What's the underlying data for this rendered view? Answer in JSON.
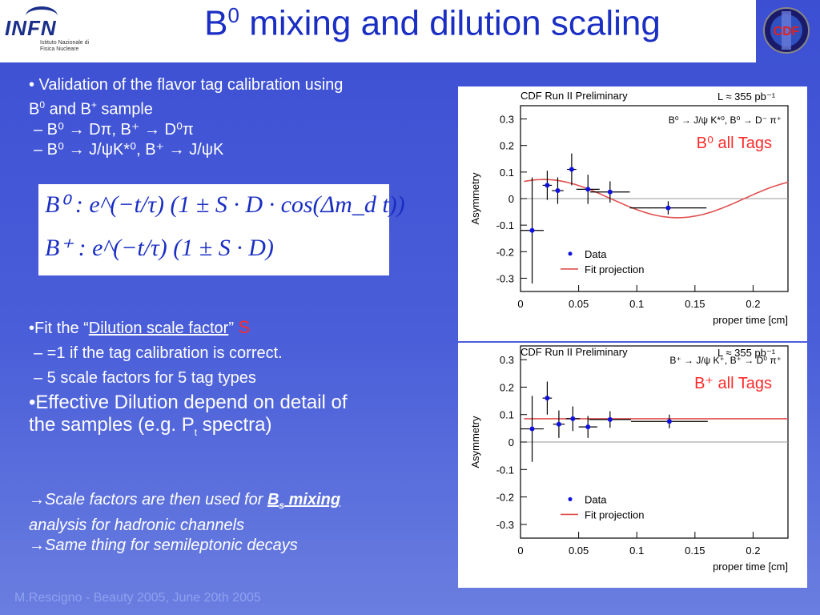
{
  "header": {
    "title_base": "B",
    "title_sup": "0",
    "title_rest": " mixing and dilution scaling",
    "infn_logo_text": "INFN",
    "infn_logo_sub": "Istituto Nazionale di Fisica Nucleare",
    "cdf_logo_text": "CDF"
  },
  "bullets1": {
    "line1a": "• Validation of the flavor tag calibration using",
    "line1b_pre": "B",
    "line1b_sup1": "0",
    "line1b_mid": " and B",
    "line1b_sup2": "+",
    "line1b_post": " sample",
    "sub1": "– B⁰ → Dπ, B⁺ → D⁰π",
    "sub2": "– B⁰ → J/ψK*⁰, B⁺ → J/ψK"
  },
  "formula": {
    "row1": "B⁰ : e^(−t/τ) (1 ± S · D · cos(Δm_d t))",
    "row2": "B⁺ : e^(−t/τ) (1 ± S · D)"
  },
  "bullets2": {
    "fit_pre": "•Fit the “",
    "fit_link": "Dilution scale factor",
    "fit_post": "” ",
    "fit_symbol": "S",
    "sub1": "–  =1 if the tag calibration is correct.",
    "sub2": "–  5 scale factors for 5 tag types",
    "eff1": "•Effective Dilution depend on detail of",
    "eff2_pre": "the samples (e.g. P",
    "eff2_sub": "t",
    "eff2_post": " spectra)"
  },
  "bullets3": {
    "l1_pre": "→Scale factors are then used for ",
    "l1_link": "B",
    "l1_link_sub": "s",
    "l1_link2": " mixing",
    "l1b": "analysis for hadronic channels",
    "l2": "→Same thing  for semileptonic decays"
  },
  "footer": "M.Rescigno - Beauty 2005,  June 20th 2005",
  "chart_data": [
    {
      "type": "scatter",
      "header_left": "CDF Run II Preliminary",
      "header_right": "L ≈ 355 pb⁻¹",
      "decay_label": "B⁰ → J/ψ K*⁰, B⁰ → D⁻ π⁺",
      "tag_label": "B⁰ all Tags",
      "xlabel": "proper time [cm]",
      "ylabel": "Asymmetry",
      "xlim": [
        0,
        0.23
      ],
      "ylim": [
        -0.35,
        0.35
      ],
      "xticks": [
        "0",
        "0.05",
        "0.1",
        "0.15",
        "0.2"
      ],
      "yticks": [
        "0.3",
        "0.2",
        "0.1",
        "0",
        "-0.1",
        "-0.2",
        "-0.3"
      ],
      "legend": [
        "Data",
        "Fit projection"
      ],
      "series": [
        {
          "name": "Data",
          "points": [
            {
              "x": 0.01,
              "y": -0.12,
              "xerr": 0.01,
              "yerr": 0.2
            },
            {
              "x": 0.023,
              "y": 0.05,
              "xerr": 0.004,
              "yerr": 0.055
            },
            {
              "x": 0.032,
              "y": 0.03,
              "xerr": 0.005,
              "yerr": 0.05
            },
            {
              "x": 0.044,
              "y": 0.11,
              "xerr": 0.004,
              "yerr": 0.06
            },
            {
              "x": 0.058,
              "y": 0.035,
              "xerr": 0.01,
              "yerr": 0.055
            },
            {
              "x": 0.077,
              "y": 0.025,
              "xerr": 0.017,
              "yerr": 0.04
            },
            {
              "x": 0.127,
              "y": -0.035,
              "xerr": 0.033,
              "yerr": 0.025
            }
          ]
        },
        {
          "name": "Fit projection",
          "curve": "cosine",
          "amplitude": 0.072,
          "period": 0.23,
          "phase_x": 0.02,
          "x_start": 0.003,
          "x_end": 0.23
        }
      ]
    },
    {
      "type": "scatter",
      "header_left": "CDF Run II Preliminary",
      "header_right": "L ≈ 355 pb⁻¹",
      "decay_label": "B⁺ → J/ψ K⁺, B⁺ → D̄⁰ π⁺",
      "tag_label": "B⁺ all Tags",
      "xlabel": "proper time [cm]",
      "ylabel": "Asymmetry",
      "xlim": [
        0,
        0.23
      ],
      "ylim": [
        -0.35,
        0.35
      ],
      "xticks": [
        "0",
        "0.05",
        "0.1",
        "0.15",
        "0.2"
      ],
      "yticks": [
        "0.3",
        "0.2",
        "0.1",
        "0",
        "-0.1",
        "-0.2",
        "-0.3"
      ],
      "legend": [
        "Data",
        "Fit projection"
      ],
      "series": [
        {
          "name": "Data",
          "points": [
            {
              "x": 0.01,
              "y": 0.048,
              "xerr": 0.01,
              "yerr": 0.12
            },
            {
              "x": 0.023,
              "y": 0.16,
              "xerr": 0.004,
              "yerr": 0.06
            },
            {
              "x": 0.033,
              "y": 0.065,
              "xerr": 0.005,
              "yerr": 0.05
            },
            {
              "x": 0.045,
              "y": 0.085,
              "xerr": 0.006,
              "yerr": 0.045
            },
            {
              "x": 0.058,
              "y": 0.055,
              "xerr": 0.008,
              "yerr": 0.04
            },
            {
              "x": 0.077,
              "y": 0.082,
              "xerr": 0.018,
              "yerr": 0.03
            },
            {
              "x": 0.128,
              "y": 0.075,
              "xerr": 0.033,
              "yerr": 0.025
            }
          ]
        },
        {
          "name": "Fit projection",
          "curve": "flat",
          "value": 0.085,
          "x_start": 0.003,
          "x_end": 0.23
        }
      ]
    }
  ],
  "colors": {
    "title": "#1a2ec4",
    "red": "#ff2a2a",
    "fit": "#e05050",
    "data": "#1010e0"
  }
}
